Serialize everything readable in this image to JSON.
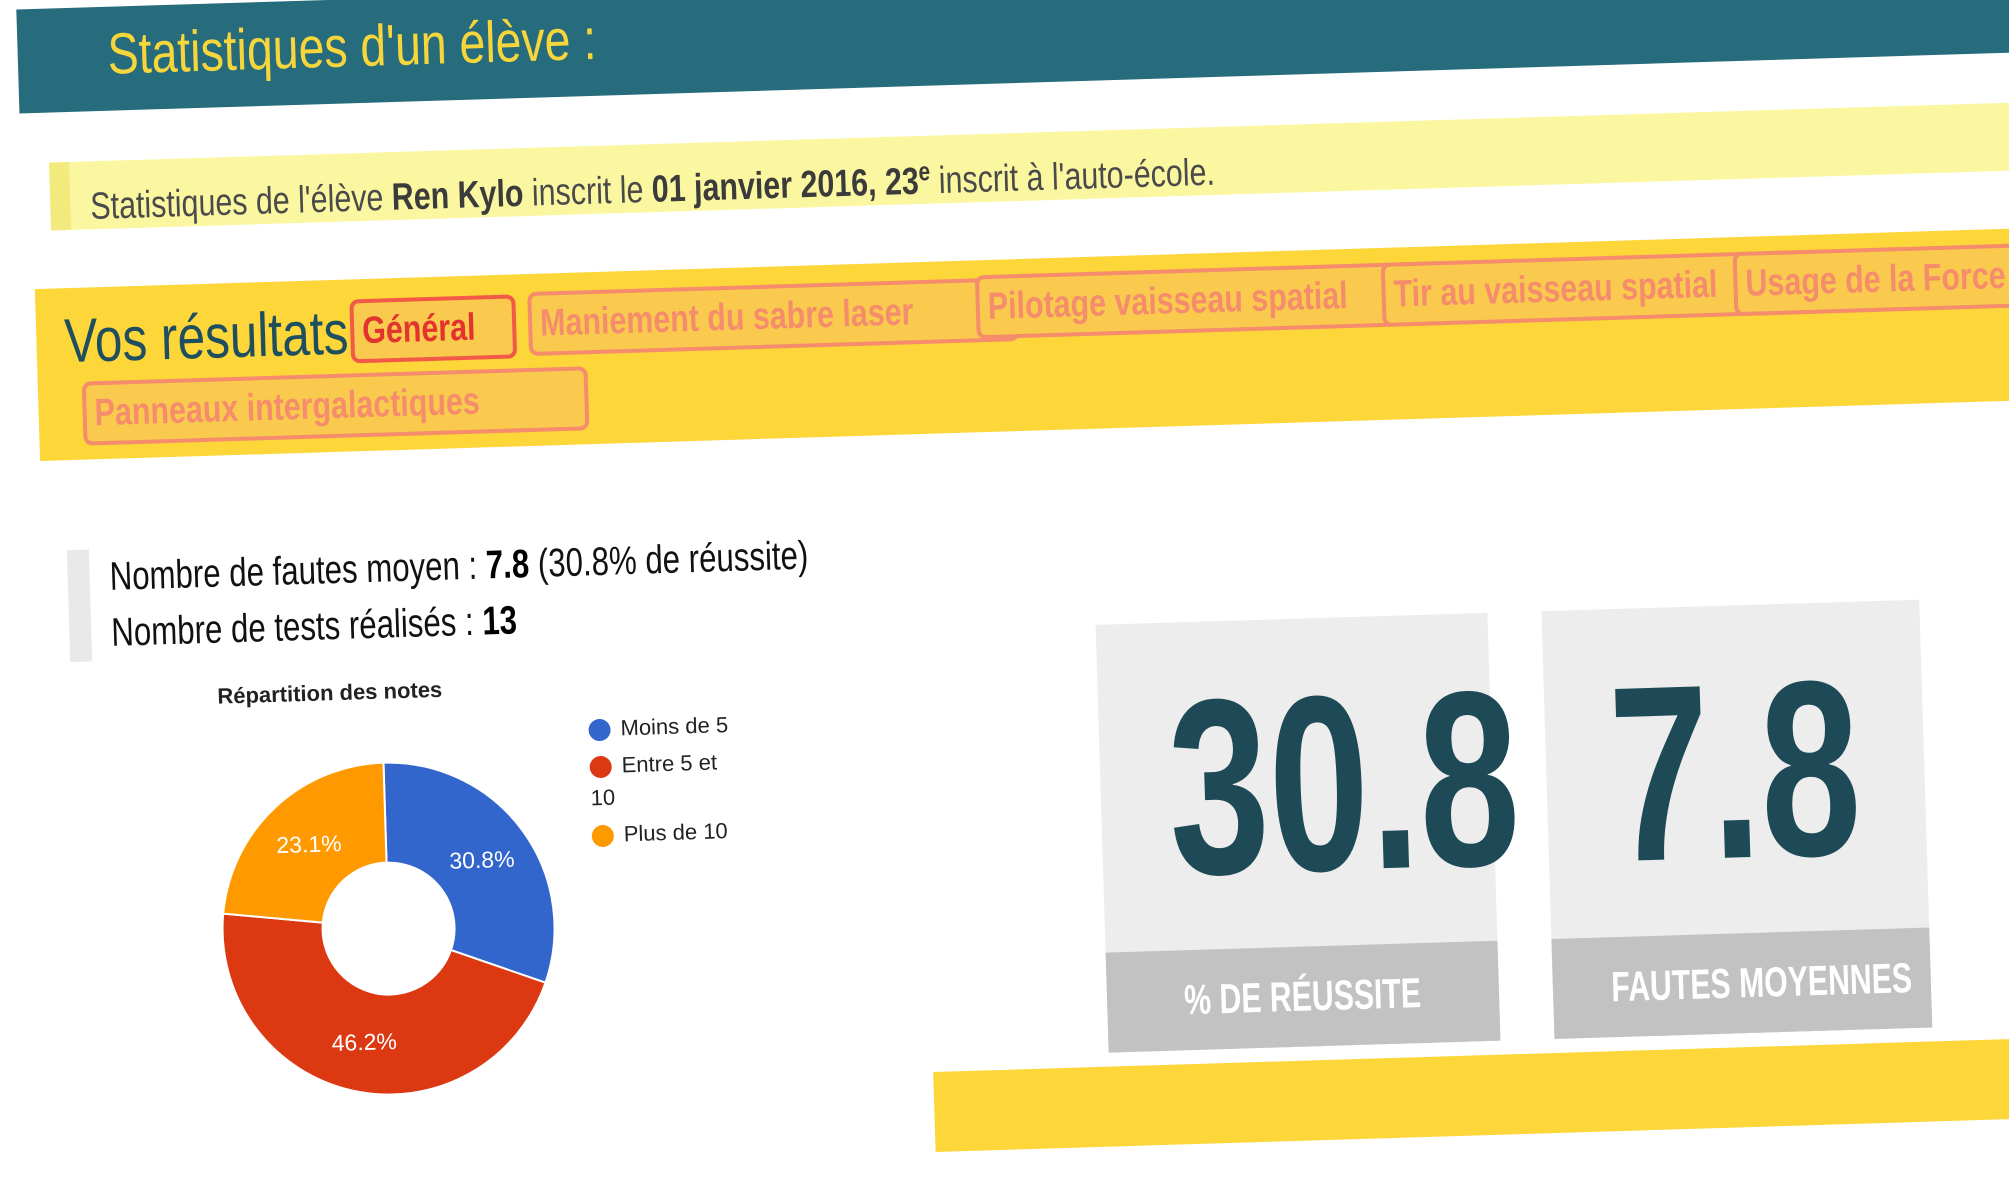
{
  "header": {
    "title": "Statistiques d'un élève :"
  },
  "info": {
    "prefix": "Statistiques de l'élève",
    "student_name": "Ren Kylo",
    "mid": "inscrit le",
    "date": "01 janvier 2016",
    "rank_number": ", 23",
    "rank_suffix": "e",
    "suffix": "inscrit à l'auto-école."
  },
  "results": {
    "title": "Vos résultats",
    "tabs": [
      {
        "label": "Général",
        "active": true
      },
      {
        "label": "Maniement du sabre laser",
        "active": false
      },
      {
        "label": "Pilotage vaisseau spatial",
        "active": false
      },
      {
        "label": "Tir au vaisseau spatial",
        "active": false
      },
      {
        "label": "Usage de la Force",
        "active": false
      },
      {
        "label": "Panneaux intergalactiques",
        "active": false
      }
    ]
  },
  "stats": {
    "faults_label": "Nombre de fautes moyen : ",
    "faults_value": "7.8",
    "faults_rate": " (30.8% de réussite)",
    "tests_label": "Nombre de tests réalisés : ",
    "tests_value": "13"
  },
  "chart_data": {
    "type": "pie",
    "title": "Répartition des notes",
    "donut": true,
    "legend_position": "right",
    "categories": [
      "Moins de 5",
      "Entre 5 et 10",
      "Plus de 10"
    ],
    "values": [
      30.8,
      46.2,
      23.1
    ],
    "labels": [
      "30.8%",
      "46.2%",
      "23.1%"
    ],
    "colors": [
      "#3366cc",
      "#dc3912",
      "#ff9900"
    ]
  },
  "kpis": [
    {
      "value": "30.8",
      "label": "% DE RÉUSSITE"
    },
    {
      "value": "7.8",
      "label": "FAUTES MOYENNES"
    }
  ],
  "colors": {
    "header_bg": "#276c7c",
    "title_yellow": "#f7d63c",
    "band_yellow": "#fdd63a",
    "info_bg": "#fbf7a1",
    "tab_border": "#f58c6c",
    "tab_active": "#e2332e",
    "kpi_number": "#1e4a58",
    "kpi_bg": "#ededed",
    "kpi_label_bg": "#c2c2c2"
  }
}
